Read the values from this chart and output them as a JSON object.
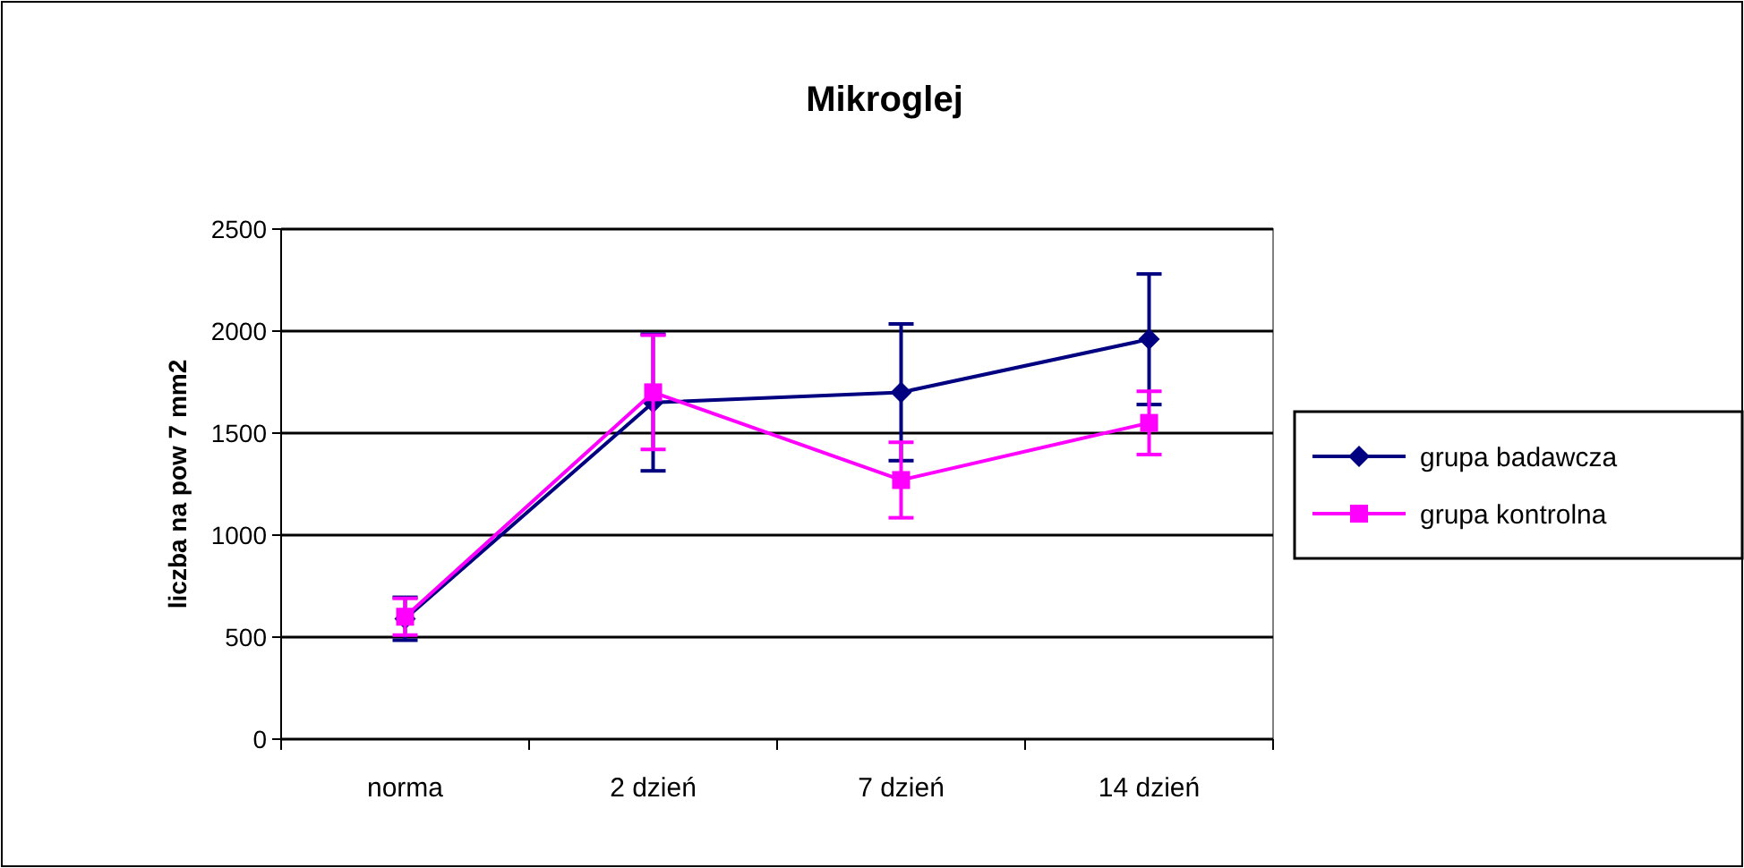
{
  "chart_data": {
    "type": "line",
    "title": "Mikroglej",
    "ylabel": "liczba na pow 7 mm2",
    "categories": [
      "norma",
      "2 dzień",
      "7 dzień",
      "14 dzień"
    ],
    "series": [
      {
        "name": "grupa badawcza",
        "color": "#000080",
        "marker": "diamond",
        "values": [
          590,
          1650,
          1700,
          1960
        ],
        "errors": [
          105,
          335,
          335,
          320
        ]
      },
      {
        "name": "grupa kontrolna",
        "color": "#ff00ff",
        "marker": "square",
        "values": [
          600,
          1700,
          1270,
          1550
        ],
        "errors": [
          90,
          280,
          185,
          155
        ]
      }
    ],
    "ylim": [
      0,
      2500
    ],
    "yticks": [
      0,
      500,
      1000,
      1500,
      2000,
      2500
    ],
    "grid": "y",
    "legend": "right"
  }
}
